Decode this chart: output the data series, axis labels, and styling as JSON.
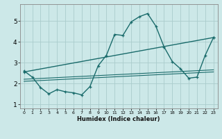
{
  "title": "",
  "xlabel": "Humidex (Indice chaleur)",
  "background_color": "#cce8e8",
  "grid_color": "#aacccc",
  "line_color": "#1a6b6b",
  "xlim": [
    -0.5,
    23.5
  ],
  "ylim": [
    0.8,
    5.8
  ],
  "xticks": [
    0,
    1,
    2,
    3,
    4,
    5,
    6,
    7,
    8,
    9,
    10,
    11,
    12,
    13,
    14,
    15,
    16,
    17,
    18,
    19,
    20,
    21,
    22,
    23
  ],
  "yticks": [
    1,
    2,
    3,
    4,
    5
  ],
  "series": [
    {
      "x": [
        0,
        1,
        2,
        3,
        4,
        5,
        6,
        7,
        8,
        9,
        10,
        11,
        12,
        13,
        14,
        15,
        16,
        17,
        18,
        19,
        20,
        21,
        22,
        23
      ],
      "y": [
        2.6,
        2.3,
        1.8,
        1.5,
        1.7,
        1.6,
        1.55,
        1.45,
        1.85,
        2.85,
        3.35,
        4.35,
        4.3,
        4.95,
        5.2,
        5.35,
        4.75,
        3.75,
        3.05,
        2.7,
        2.25,
        2.3,
        3.35,
        4.2
      ],
      "markers": true
    },
    {
      "x": [
        0,
        23
      ],
      "y": [
        2.55,
        4.2
      ],
      "markers": true
    },
    {
      "x": [
        0,
        23
      ],
      "y": [
        2.1,
        2.55
      ],
      "markers": false
    },
    {
      "x": [
        0,
        23
      ],
      "y": [
        2.2,
        2.65
      ],
      "markers": false
    }
  ]
}
